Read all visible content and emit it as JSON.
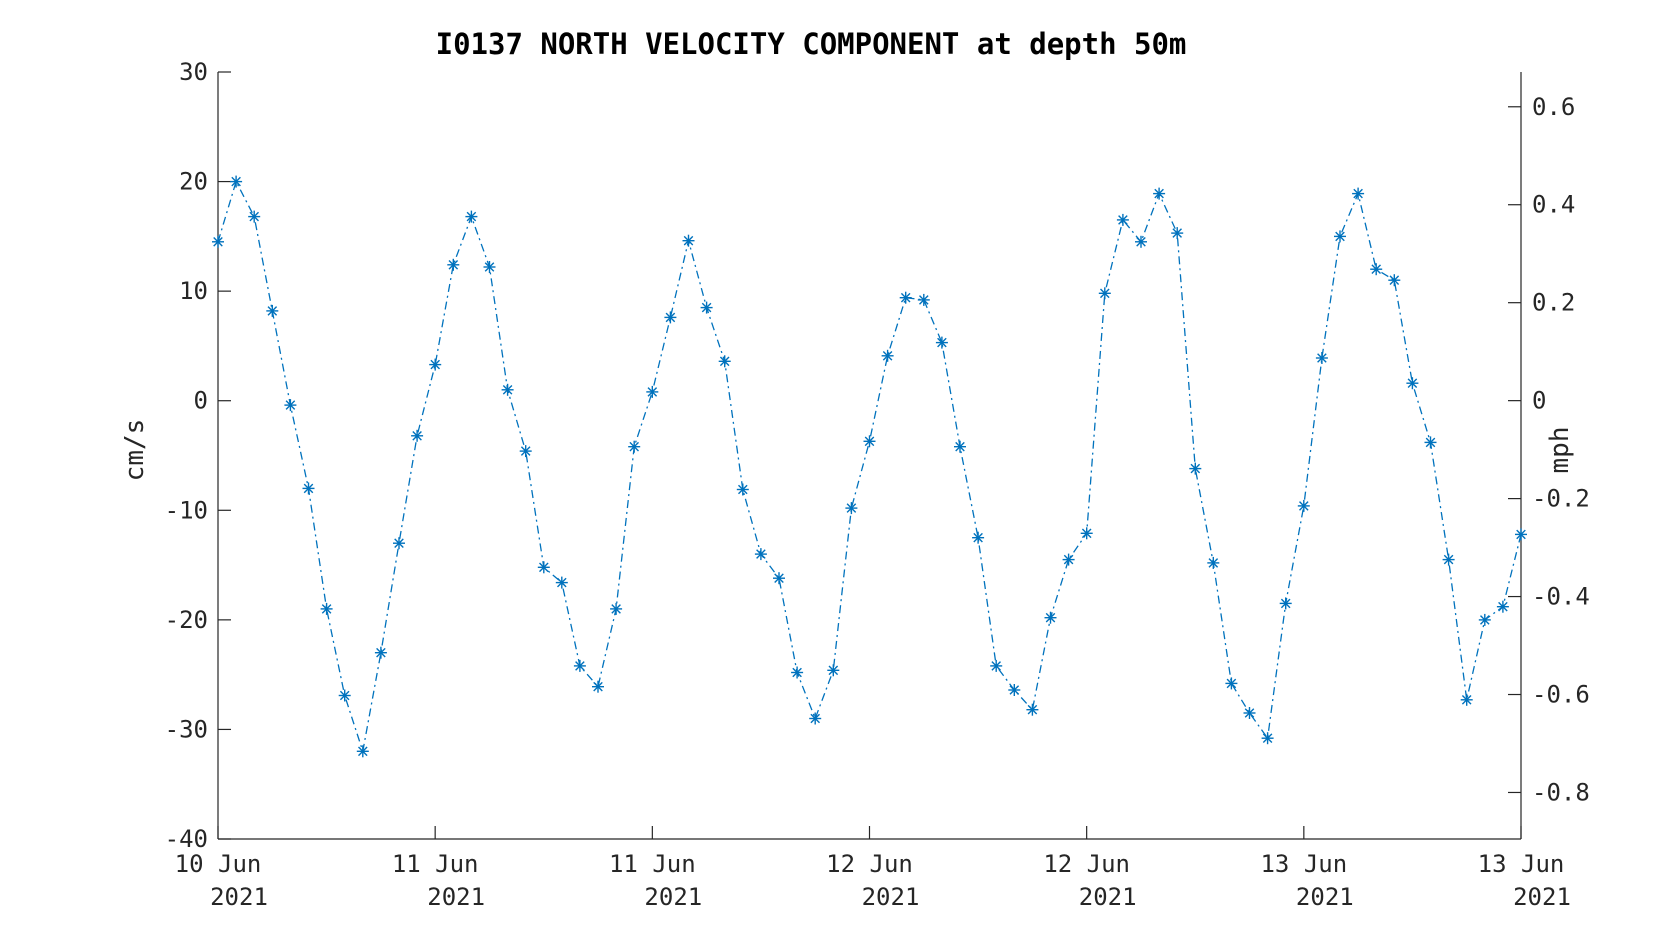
{
  "chart_data": {
    "type": "line",
    "title": "I0137 NORTH VELOCITY COMPONENT at depth 50m",
    "ylabel": "cm/s",
    "y2label": "mph",
    "ylim": [
      -40,
      30
    ],
    "y2lim": [
      -0.895,
      0.671
    ],
    "yticks": [
      "-40",
      "-30",
      "-20",
      "-10",
      "0",
      "10",
      "20",
      "30"
    ],
    "y2ticks": [
      "-0.8",
      "-0.6",
      "-0.4",
      "-0.2",
      "0",
      "0.2",
      "0.4",
      "0.6"
    ],
    "xticks": [
      {
        "line1": "10 Jun",
        "line2": "2021"
      },
      {
        "line1": "11 Jun",
        "line2": "2021"
      },
      {
        "line1": "11 Jun",
        "line2": "2021"
      },
      {
        "line1": "12 Jun",
        "line2": "2021"
      },
      {
        "line1": "12 Jun",
        "line2": "2021"
      },
      {
        "line1": "13 Jun",
        "line2": "2021"
      },
      {
        "line1": "13 Jun",
        "line2": "2021"
      }
    ],
    "line_style": "dash-dot",
    "marker": "asterisk",
    "grid": false,
    "color": "#0072BD",
    "series": [
      {
        "values": [
          14.5,
          20.0,
          16.8,
          8.2,
          -0.4,
          -8.0,
          -19.0,
          -26.9,
          -32.0,
          -23.0,
          -13.0,
          -3.2,
          3.3,
          12.4,
          16.8,
          12.2,
          1.0,
          -4.6,
          -15.2,
          -16.6,
          -24.2,
          -26.1,
          -19.0,
          -4.2,
          0.8,
          7.6,
          14.6,
          8.5,
          3.6,
          -8.1,
          -14.0,
          -16.2,
          -24.8,
          -29.0,
          -24.6,
          -9.8,
          -3.7,
          4.1,
          9.4,
          9.2,
          5.3,
          -4.2,
          -12.5,
          -24.2,
          -26.4,
          -28.2,
          -19.8,
          -14.5,
          -12.1,
          9.8,
          16.5,
          14.5,
          18.9,
          15.3,
          -6.2,
          -14.8,
          -25.8,
          -28.5,
          -30.8,
          -18.5,
          -9.6,
          3.9,
          15.0,
          18.9,
          12.0,
          11.0,
          1.6,
          -3.8,
          -14.5,
          -27.3,
          -20.0,
          -18.8,
          -12.2
        ]
      }
    ]
  }
}
